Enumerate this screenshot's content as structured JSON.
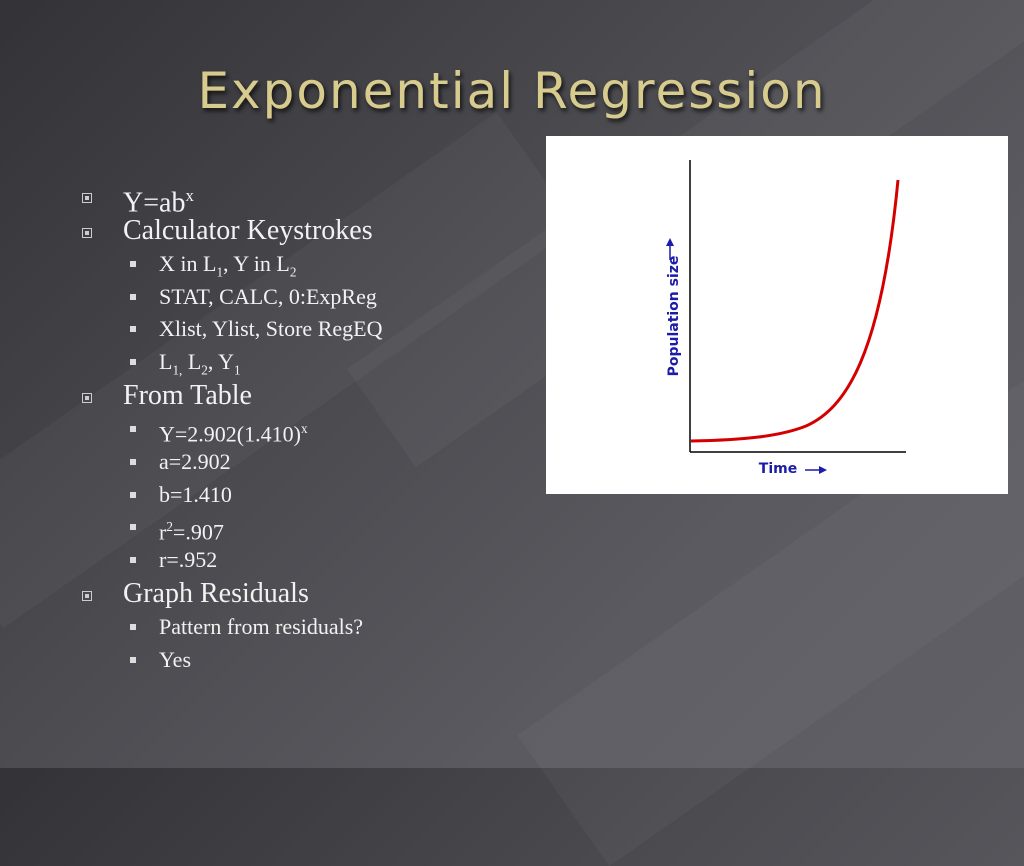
{
  "title": "Exponential Regression",
  "bullets": [
    {
      "level": 1,
      "parts": [
        "Y=ab",
        {
          "text": "x",
          "style": "sup"
        }
      ]
    },
    {
      "level": 1,
      "parts": [
        "Calculator Keystrokes"
      ]
    },
    {
      "level": 2,
      "parts": [
        "X in L",
        {
          "text": "1",
          "style": "sub"
        },
        ", Y in L",
        {
          "text": "2",
          "style": "sub"
        }
      ]
    },
    {
      "level": 2,
      "parts": [
        "STAT, CALC, 0:ExpReg"
      ]
    },
    {
      "level": 2,
      "parts": [
        "Xlist, Ylist, Store RegEQ"
      ]
    },
    {
      "level": 2,
      "parts": [
        "L",
        {
          "text": "1,",
          "style": "sub"
        },
        " L",
        {
          "text": "2",
          "style": "sub"
        },
        ", Y",
        {
          "text": "1",
          "style": "sub"
        }
      ]
    },
    {
      "level": 1,
      "parts": [
        "From Table"
      ]
    },
    {
      "level": 2,
      "parts": [
        "Y=2.902(1.410)",
        {
          "text": "x",
          "style": "sup"
        }
      ]
    },
    {
      "level": 2,
      "parts": [
        "a=2.902"
      ]
    },
    {
      "level": 2,
      "parts": [
        "b=1.410"
      ]
    },
    {
      "level": 2,
      "parts": [
        "r",
        {
          "text": "2",
          "style": "sup"
        },
        "=.907"
      ]
    },
    {
      "level": 2,
      "parts": [
        "r=.952"
      ]
    },
    {
      "level": 1,
      "parts": [
        "Graph Residuals"
      ]
    },
    {
      "level": 2,
      "parts": [
        "Pattern from residuals?"
      ]
    },
    {
      "level": 2,
      "parts": [
        "Yes"
      ]
    }
  ],
  "figure": {
    "y_label": "Population size",
    "x_label": "Time"
  }
}
